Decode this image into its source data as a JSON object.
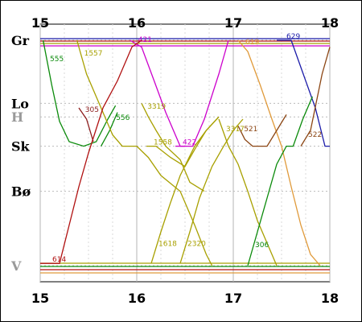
{
  "chart_data": {
    "type": "line",
    "title": "",
    "x_ticks": [
      "15",
      "16",
      "17",
      "18"
    ],
    "xlim": [
      15,
      18
    ],
    "stations": [
      {
        "name": "Gr",
        "pos": 0.0,
        "dim": false
      },
      {
        "name": "Lo",
        "pos": 0.28,
        "dim": false
      },
      {
        "name": "H",
        "pos": 0.34,
        "dim": true
      },
      {
        "name": "Sk",
        "pos": 0.47,
        "dim": false
      },
      {
        "name": "Bø",
        "pos": 0.67,
        "dim": false
      },
      {
        "name": "V",
        "pos": 1.0,
        "dim": true
      }
    ],
    "grid": true,
    "series": [
      {
        "name": "555",
        "color": "#0a8a0a",
        "points": [
          [
            15.03,
            0.0
          ],
          [
            15.12,
            0.2
          ],
          [
            15.2,
            0.36
          ],
          [
            15.3,
            0.45
          ],
          [
            15.45,
            0.47
          ],
          [
            15.58,
            0.45
          ],
          [
            15.7,
            0.35
          ],
          [
            15.78,
            0.29
          ]
        ]
      },
      {
        "name": "556",
        "color": "#0a8a0a",
        "points": [
          [
            15.8,
            0.32
          ],
          [
            15.72,
            0.4
          ],
          [
            15.63,
            0.47
          ]
        ]
      },
      {
        "name": "1557",
        "color": "#a8a000",
        "points": [
          [
            15.38,
            0.0
          ],
          [
            15.48,
            0.15
          ],
          [
            15.6,
            0.27
          ],
          [
            15.75,
            0.42
          ],
          [
            15.85,
            0.47
          ],
          [
            16.0,
            0.47
          ],
          [
            16.12,
            0.52
          ],
          [
            16.25,
            0.6
          ],
          [
            16.45,
            0.67
          ],
          [
            16.6,
            0.82
          ],
          [
            16.72,
            0.95
          ],
          [
            16.78,
            1.0
          ]
        ]
      },
      {
        "name": "421",
        "color": "#cc00cc",
        "points": [
          [
            15.93,
            0.0
          ],
          [
            16.05,
            0.03
          ],
          [
            16.18,
            0.18
          ],
          [
            16.3,
            0.32
          ],
          [
            16.45,
            0.47
          ],
          [
            16.58,
            0.47
          ],
          [
            16.7,
            0.35
          ],
          [
            16.85,
            0.15
          ],
          [
            16.95,
            0.0
          ]
        ]
      },
      {
        "name": "422",
        "color": "#cc00cc",
        "points": [
          [
            16.4,
            0.47
          ],
          [
            16.5,
            0.47
          ]
        ]
      },
      {
        "name": "305",
        "color": "#8b1a1a",
        "points": [
          [
            15.4,
            0.3
          ],
          [
            15.48,
            0.35
          ],
          [
            15.55,
            0.45
          ]
        ]
      },
      {
        "name": "614",
        "color": "#b01010",
        "points": [
          [
            15.0,
            0.99
          ],
          [
            15.2,
            0.99
          ],
          [
            15.3,
            0.82
          ],
          [
            15.4,
            0.65
          ],
          [
            15.5,
            0.5
          ],
          [
            15.65,
            0.3
          ],
          [
            15.8,
            0.18
          ],
          [
            15.95,
            0.03
          ],
          [
            16.05,
            0.0
          ]
        ]
      },
      {
        "name": "3319",
        "color": "#a8a000",
        "points": [
          [
            16.05,
            0.28
          ],
          [
            16.12,
            0.34
          ],
          [
            16.2,
            0.4
          ],
          [
            16.3,
            0.47
          ],
          [
            16.45,
            0.53
          ],
          [
            16.55,
            0.63
          ],
          [
            16.7,
            0.67
          ]
        ]
      },
      {
        "name": "1558",
        "color": "#a8a000",
        "points": [
          [
            16.1,
            0.47
          ],
          [
            16.2,
            0.47
          ],
          [
            16.35,
            0.52
          ],
          [
            16.5,
            0.56
          ],
          [
            16.62,
            0.47
          ],
          [
            16.72,
            0.4
          ],
          [
            16.85,
            0.34
          ]
        ]
      },
      {
        "name": "619",
        "color": "#e09a3a",
        "points": [
          [
            17.05,
            0.0
          ],
          [
            17.15,
            0.05
          ],
          [
            17.28,
            0.2
          ],
          [
            17.4,
            0.35
          ],
          [
            17.5,
            0.47
          ],
          [
            17.6,
            0.65
          ],
          [
            17.7,
            0.82
          ],
          [
            17.8,
            0.95
          ],
          [
            17.9,
            1.0
          ]
        ]
      },
      {
        "name": "629",
        "color": "#1a1aa8",
        "points": [
          [
            17.45,
            0.0
          ],
          [
            17.6,
            0.0
          ],
          [
            17.7,
            0.12
          ],
          [
            17.85,
            0.3
          ],
          [
            17.95,
            0.47
          ],
          [
            18.0,
            0.47
          ]
        ]
      },
      {
        "name": "521",
        "color": "#8b4513",
        "points": [
          [
            17.05,
            0.38
          ],
          [
            17.12,
            0.44
          ],
          [
            17.2,
            0.47
          ],
          [
            17.35,
            0.47
          ],
          [
            17.45,
            0.4
          ],
          [
            17.55,
            0.33
          ]
        ]
      },
      {
        "name": "522",
        "color": "#8b4513",
        "points": [
          [
            17.7,
            0.47
          ],
          [
            17.8,
            0.4
          ],
          [
            17.92,
            0.15
          ],
          [
            18.0,
            0.03
          ]
        ]
      },
      {
        "name": "3317",
        "color": "#a8a000",
        "points": [
          [
            16.85,
            0.35
          ],
          [
            16.95,
            0.47
          ],
          [
            17.05,
            0.55
          ],
          [
            17.15,
            0.67
          ],
          [
            17.25,
            0.8
          ],
          [
            17.35,
            0.9
          ],
          [
            17.45,
            1.0
          ]
        ]
      },
      {
        "name": "306",
        "color": "#0a8a0a",
        "points": [
          [
            17.15,
            1.0
          ],
          [
            17.25,
            0.85
          ],
          [
            17.35,
            0.7
          ],
          [
            17.45,
            0.55
          ],
          [
            17.55,
            0.47
          ],
          [
            17.62,
            0.47
          ],
          [
            17.72,
            0.35
          ],
          [
            17.82,
            0.25
          ]
        ]
      },
      {
        "name": "1618",
        "color": "#a8a000",
        "points": [
          [
            16.15,
            0.99
          ],
          [
            16.25,
            0.85
          ],
          [
            16.35,
            0.72
          ],
          [
            16.45,
            0.6
          ],
          [
            16.6,
            0.47
          ],
          [
            16.72,
            0.4
          ],
          [
            16.85,
            0.34
          ]
        ]
      },
      {
        "name": "2320",
        "color": "#a8a000",
        "points": [
          [
            16.45,
            0.99
          ],
          [
            16.55,
            0.85
          ],
          [
            16.65,
            0.7
          ],
          [
            16.78,
            0.56
          ],
          [
            16.9,
            0.47
          ],
          [
            17.0,
            0.4
          ],
          [
            17.1,
            0.35
          ]
        ]
      }
    ],
    "top_bands": [
      {
        "color": "#1a1aa8"
      },
      {
        "color": "#b01010"
      },
      {
        "color": "#a8a000"
      },
      {
        "color": "#cc00cc"
      }
    ],
    "bottom_bands": [
      {
        "color": "#a8a000"
      },
      {
        "color": "#0a8a0a"
      },
      {
        "color": "#b01010"
      },
      {
        "color": "#e09a3a"
      }
    ]
  }
}
